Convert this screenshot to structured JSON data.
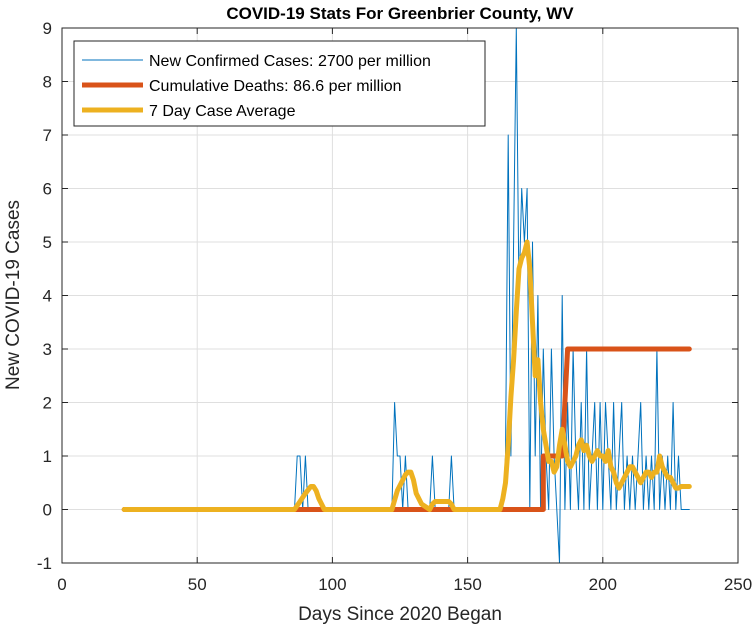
{
  "chart_data": {
    "type": "line",
    "title": "COVID-19 Stats For Greenbrier County, WV",
    "xlabel": "Days Since 2020 Began",
    "ylabel": "New COVID-19 Cases",
    "xlim": [
      0,
      250
    ],
    "ylim": [
      -1,
      9
    ],
    "xticks": [
      0,
      50,
      100,
      150,
      200,
      250
    ],
    "yticks": [
      -1,
      0,
      1,
      2,
      3,
      4,
      5,
      6,
      7,
      8,
      9
    ],
    "grid": true,
    "legend_position": "top-left",
    "series": [
      {
        "name": "New Confirmed Cases: 2700 per million",
        "color": "#0072BD",
        "line_width": 1,
        "x": [
          23,
          86,
          87,
          88,
          89,
          90,
          91,
          92,
          93,
          122,
          123,
          124,
          125,
          126,
          127,
          128,
          129,
          136,
          137,
          138,
          139,
          143,
          144,
          145,
          146,
          162,
          163,
          164,
          165,
          166,
          167,
          168,
          169,
          170,
          171,
          172,
          173,
          174,
          175,
          176,
          177,
          178,
          179,
          180,
          181,
          182,
          183,
          184,
          185,
          186,
          187,
          188,
          189,
          190,
          191,
          192,
          193,
          194,
          195,
          196,
          197,
          198,
          199,
          200,
          201,
          202,
          203,
          204,
          205,
          206,
          207,
          208,
          209,
          210,
          211,
          212,
          213,
          214,
          215,
          216,
          217,
          218,
          219,
          220,
          221,
          222,
          223,
          224,
          225,
          226,
          227,
          228,
          229,
          230,
          231,
          232
        ],
        "values": [
          0,
          0,
          1,
          1,
          0,
          1,
          0,
          0,
          0,
          0,
          2,
          1,
          1,
          0,
          1,
          0,
          0,
          0,
          1,
          0,
          0,
          0,
          1,
          0,
          0,
          0,
          0,
          1,
          7,
          1,
          5,
          9,
          4,
          6,
          5,
          6,
          0,
          5,
          1,
          4,
          0,
          3,
          1,
          0,
          3,
          1,
          0,
          -1,
          4,
          0,
          2,
          0,
          3,
          1,
          0,
          2,
          0,
          3,
          0,
          1,
          2,
          0,
          2,
          0,
          2,
          1,
          0,
          2,
          0,
          1,
          2,
          0,
          1,
          0,
          1,
          0,
          1,
          2,
          0,
          1,
          0,
          1,
          0,
          3,
          0,
          1,
          0,
          1,
          0,
          2,
          0,
          1,
          0,
          0,
          0,
          0
        ]
      },
      {
        "name": "Cumulative Deaths: 86.6 per million",
        "color": "#D95319",
        "line_width": 5,
        "x": [
          23,
          178,
          178,
          185,
          186,
          187,
          232
        ],
        "values": [
          0,
          0,
          1,
          1,
          2,
          3,
          3
        ]
      },
      {
        "name": "7 Day Case Average",
        "color": "#EDB120",
        "line_width": 5,
        "x": [
          23,
          86,
          88,
          90,
          92,
          93,
          94,
          95,
          97,
          122,
          124,
          126,
          127,
          128,
          129,
          130,
          131,
          133,
          136,
          137,
          138,
          140,
          143,
          144,
          145,
          146,
          162,
          163,
          164,
          165,
          166,
          167,
          168,
          169,
          170,
          171,
          172,
          173,
          174,
          175,
          176,
          177,
          178,
          179,
          180,
          181,
          182,
          183,
          184,
          185,
          186,
          187,
          188,
          189,
          190,
          191,
          192,
          193,
          194,
          195,
          196,
          197,
          198,
          199,
          200,
          201,
          202,
          203,
          204,
          205,
          206,
          207,
          208,
          209,
          210,
          211,
          212,
          213,
          214,
          215,
          216,
          217,
          218,
          219,
          220,
          221,
          222,
          223,
          224,
          225,
          226,
          227,
          228,
          229,
          230,
          231,
          232
        ],
        "values": [
          0,
          0,
          0.15,
          0.3,
          0.43,
          0.43,
          0.35,
          0.2,
          0,
          0,
          0.35,
          0.55,
          0.65,
          0.7,
          0.7,
          0.55,
          0.3,
          0.1,
          0,
          0.1,
          0.15,
          0.15,
          0.15,
          0.1,
          0,
          0,
          0,
          0.2,
          0.5,
          1.2,
          2.1,
          2.8,
          3.7,
          4.5,
          4.7,
          4.8,
          5,
          4.5,
          3.5,
          2.5,
          2.8,
          2,
          1.5,
          1.2,
          0.9,
          0.9,
          0.7,
          0.8,
          1.2,
          1.5,
          1.2,
          0.9,
          0.8,
          0.9,
          1,
          1.2,
          1.3,
          1.1,
          1.2,
          1,
          0.9,
          1,
          1.1,
          1,
          1,
          0.9,
          1.1,
          0.8,
          0.7,
          0.5,
          0.4,
          0.5,
          0.6,
          0.7,
          0.8,
          0.8,
          0.7,
          0.6,
          0.5,
          0.6,
          0.7,
          0.7,
          0.6,
          0.7,
          0.7,
          1,
          0.8,
          0.7,
          0.6,
          0.6,
          0.5,
          0.4,
          0.4,
          0.43,
          0.43,
          0.43,
          0.43
        ]
      }
    ]
  }
}
